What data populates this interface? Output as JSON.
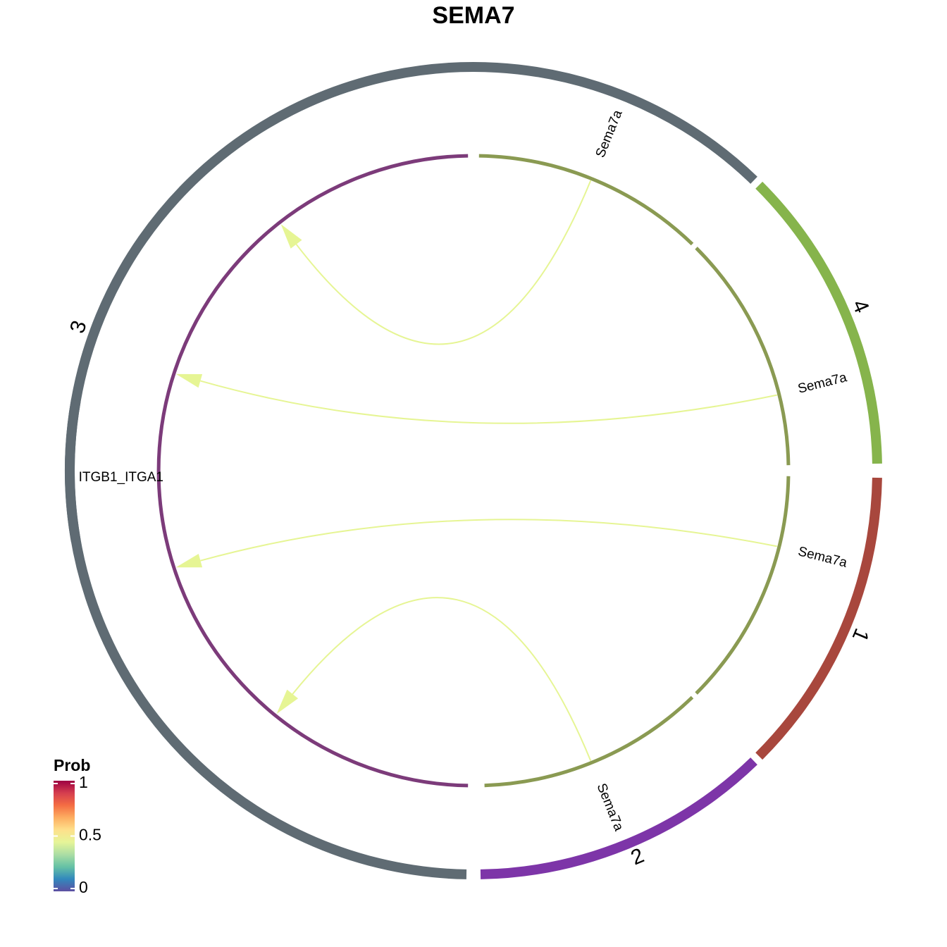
{
  "title": "SEMA7",
  "sectors": [
    {
      "id": "3",
      "label": "3",
      "color": "#5f6b73"
    },
    {
      "id": "4",
      "label": "4",
      "color": "#86b44c"
    },
    {
      "id": "1",
      "label": "1",
      "color": "#a8473d"
    },
    {
      "id": "2",
      "label": "2",
      "color": "#7d35a8"
    }
  ],
  "inner_track": {
    "receiver_color": "#7c3b7a",
    "sender_color": "#8a9a52"
  },
  "gene_labels": {
    "receiver": "ITGB1_ITGA1",
    "senders": [
      "Sema7a",
      "Sema7a",
      "Sema7a",
      "Sema7a"
    ]
  },
  "links": [
    {
      "from": "4",
      "to": "3",
      "ligand": "Sema7a",
      "receptor": "ITGB1_ITGA1",
      "prob": 0.5
    },
    {
      "from": "4",
      "to": "3",
      "ligand": "Sema7a",
      "receptor": "ITGB1_ITGA1",
      "prob": 0.5
    },
    {
      "from": "1",
      "to": "3",
      "ligand": "Sema7a",
      "receptor": "ITGB1_ITGA1",
      "prob": 0.5
    },
    {
      "from": "2",
      "to": "3",
      "ligand": "Sema7a",
      "receptor": "ITGB1_ITGA1",
      "prob": 0.5
    }
  ],
  "link_color": "#e6f594",
  "legend": {
    "title": "Prob",
    "ticks": [
      "1",
      "0.5",
      "0"
    ],
    "gradient": [
      "#5e4fa2",
      "#3288bd",
      "#66c2a5",
      "#abdda4",
      "#e6f598",
      "#fee08b",
      "#fdae61",
      "#f46d43",
      "#d53e4f",
      "#9e0142"
    ]
  }
}
